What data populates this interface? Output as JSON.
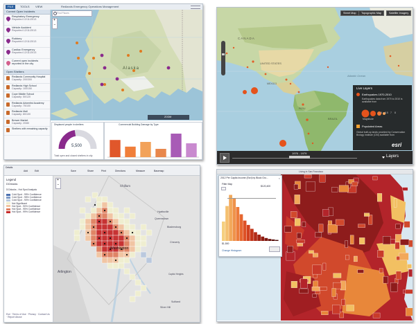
{
  "panel1": {
    "window_title": "Redlands Emergency Operations Management",
    "menu_tabs": [
      "FILE",
      "TOOLS",
      "VIEW"
    ],
    "search_placeholder": "Find Places",
    "incidents_header": "Current Open Incidents",
    "incidents": [
      {
        "title": "Respiratory Emergency",
        "time": "Reported 12/11/2013",
        "color": "#8a2a8c"
      },
      {
        "title": "Vehicle Accident",
        "time": "Reported 12/11/2013",
        "color": "#8a2a8c"
      },
      {
        "title": "Robbery",
        "time": "Reported 12/11/2013",
        "color": "#8a2a8c"
      },
      {
        "title": "Cardiac Emergency",
        "time": "Reported 12/11/2013",
        "color": "#8a2a8c"
      },
      {
        "title": "Current open incidents reported in the city",
        "time": "",
        "color": "#d35f8d"
      }
    ],
    "shelters_header": "Open Shelters",
    "shelters": [
      {
        "name": "Redlands Community Hospital",
        "capacity": "Capacity: 200/300"
      },
      {
        "name": "Redlands High School",
        "capacity": "Capacity: 100/150"
      },
      {
        "name": "Cope Middle School",
        "capacity": "Capacity: 50/120"
      },
      {
        "name": "Redlands Adventist Academy",
        "capacity": "Capacity: 75/100"
      },
      {
        "name": "Redlands Mall",
        "capacity": "Capacity: 80/100"
      },
      {
        "name": "Brewer Market",
        "capacity": "Capacity: 20/80"
      },
      {
        "name": "Shelters with remaining capacity",
        "capacity": ""
      }
    ],
    "map_label": "Alaska",
    "zoom_label": "ZOOM",
    "gauge_title": "Displaced people in shelters",
    "gauge_value": "5,500",
    "gauge_value_num": 5500,
    "gauge_fraction": 0.45,
    "gauge_note": "Total open and closed shelters in city",
    "bar_title": "Commercial Building Damage by Type",
    "bar_chart": {
      "type": "bar",
      "categories": [
        "",
        "",
        "",
        "",
        "",
        ""
      ],
      "values": [
        62,
        38,
        55,
        30,
        85,
        50
      ],
      "colors": [
        "#e0572b",
        "#f07e3a",
        "#f2a25a",
        "#e8874c",
        "#a85bb6",
        "#c98acf"
      ]
    }
  },
  "panel2": {
    "buttons": [
      "Street Map",
      "Topographic Map",
      "Satellite Imagery"
    ],
    "place_labels": [
      "CANADA",
      "UNITED STATES",
      "MEXICO",
      "Atlantic Ocean",
      "BRAZIL",
      "PERU"
    ],
    "legend_title": "Live Layers",
    "layer1_title": "Earthquakes 1970-2010",
    "layer1_desc": "Earthquakes data from 1970 to 2010 is available from",
    "layer1_mag_label": "Magnitude",
    "layer1_mag_values": [
      "6",
      "6.5",
      "7",
      "8"
    ],
    "layer2_title": "Populated Areas",
    "layer2_desc": "Global built-up lands provided by Conservation Biology Institute (CBI) available from",
    "time_label": "1976 - 1979",
    "layers_button": "Layers",
    "logo": "esri"
  },
  "panel3": {
    "toolbar": [
      "Details",
      "Add",
      "Edit",
      "Save",
      "Share",
      "Print",
      "Directions",
      "Measure",
      "Basemap"
    ],
    "legend_title": "Legend",
    "layer_name": "DCblocks",
    "sublayer": "DCblocks - Hot Spot Analysis",
    "classes": [
      {
        "label": "Cold Spot - 99% Confidence",
        "color": "#4a6fb0"
      },
      {
        "label": "Cold Spot - 95% Confidence",
        "color": "#7e9bc8"
      },
      {
        "label": "Cold Spot - 90% Confidence",
        "color": "#b9c8de"
      },
      {
        "label": "Not Significant",
        "color": "#f0efd0"
      },
      {
        "label": "Hot Spot - 90% Confidence",
        "color": "#f2c4a0"
      },
      {
        "label": "Hot Spot - 95% Confidence",
        "color": "#e08060"
      },
      {
        "label": "Hot Spot - 99% Confidence",
        "color": "#c62a2a"
      }
    ],
    "place_labels": [
      "Chillum",
      "Hyattsville",
      "Queenstown",
      "Bladensburg",
      "Cheverly",
      "Arlington",
      "Suitland",
      "Silver Hill",
      "Capitol Heights",
      "Washington"
    ],
    "footer": "Esri · Terms of Use · Privacy · Contact Us · Report Abuse"
  },
  "panel4": {
    "window_title": "Living in San Francisco",
    "widget_title": "2012 Per Capita Income (Esri) by Block Gro...",
    "filter_label": "Filter Map",
    "filter_min": "$1,500",
    "filter_max": "$120,400",
    "histogram": {
      "type": "bar",
      "values": [
        40,
        72,
        95,
        88,
        70,
        55,
        42,
        33,
        25,
        18,
        13,
        9,
        6,
        4,
        3,
        2
      ],
      "colors": [
        "#f5d080",
        "#f4c070",
        "#f2a85a",
        "#ef924a",
        "#ec7c3c",
        "#e6662f",
        "#de5126",
        "#d1411f",
        "#c2361b",
        "#b22c18",
        "#a12415",
        "#901d12",
        "#7d170f",
        "#6a120c",
        "#580d09",
        "#470906"
      ]
    },
    "change_note": "Change Histogram"
  }
}
